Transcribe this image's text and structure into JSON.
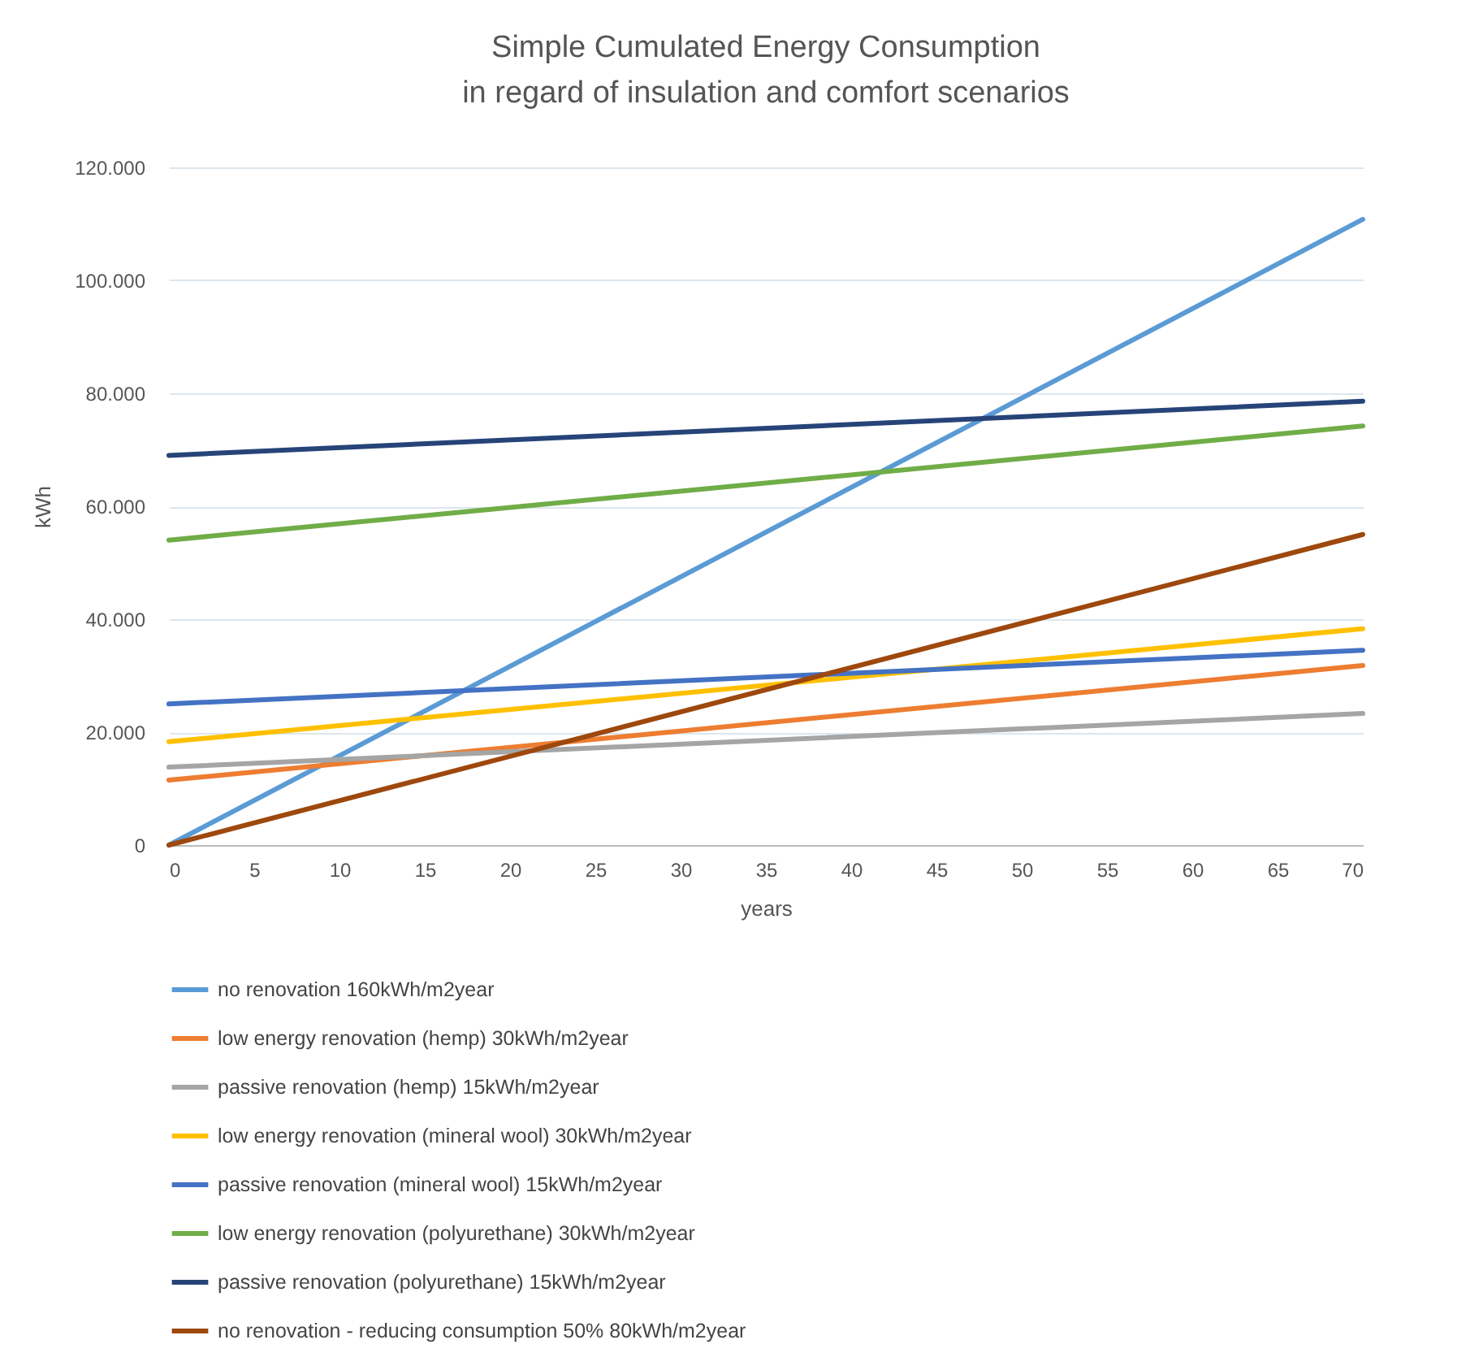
{
  "chart_data": {
    "type": "line",
    "title": "Simple Cumulated Energy Consumption\nin regard of insulation and comfort scenarios",
    "xlabel": "years",
    "ylabel": "kWh",
    "x": [
      0,
      70
    ],
    "series": [
      {
        "name": "no renovation 160kWh/m2year",
        "color": "#5b9bd5",
        "values": [
          0,
          110800
        ]
      },
      {
        "name": "low energy renovation (hemp) 30kWh/m2year",
        "color": "#ed7d31",
        "values": [
          11500,
          31800
        ]
      },
      {
        "name": "passive renovation (hemp) 15kWh/m2year",
        "color": "#a5a5a5",
        "values": [
          13800,
          23300
        ]
      },
      {
        "name": "low energy renovation (mineral wool) 30kWh/m2year",
        "color": "#ffc000",
        "values": [
          18300,
          38300
        ]
      },
      {
        "name": "passive renovation (mineral wool) 15kWh/m2year",
        "color": "#4472c4",
        "values": [
          25000,
          34500
        ]
      },
      {
        "name": "low energy renovation (polyurethane) 30kWh/m2year",
        "color": "#70ad47",
        "values": [
          54000,
          74200
        ]
      },
      {
        "name": "passive renovation (polyurethane) 15kWh/m2year",
        "color": "#264478",
        "values": [
          69000,
          78600
        ]
      },
      {
        "name": "no renovation - reducing consumption 50% 80kWh/m2year",
        "color": "#9e480e",
        "values": [
          0,
          55000
        ]
      }
    ],
    "xlim": [
      0,
      70
    ],
    "xticks": [
      0,
      5,
      10,
      15,
      20,
      25,
      30,
      35,
      40,
      45,
      50,
      55,
      60,
      65,
      70
    ],
    "ylim": [
      0,
      120000
    ],
    "yticks": [
      0,
      {
        "value": 20000,
        "label": "20.000"
      },
      {
        "value": 40000,
        "label": "40.000"
      },
      {
        "value": 60000,
        "label": "60.000"
      },
      {
        "value": 80000,
        "label": "80.000"
      },
      {
        "value": 100000,
        "label": "100.000"
      },
      {
        "value": 120000,
        "label": "120.000"
      }
    ],
    "grid": "y",
    "legend": "bottom",
    "marker": "none",
    "line_style": "solid"
  }
}
